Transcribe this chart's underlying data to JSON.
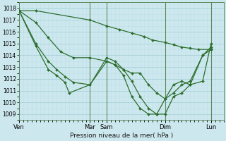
{
  "xlabel": "Pression niveau de la mer( hPa )",
  "ylim": [
    1008.5,
    1018.5
  ],
  "yticks": [
    1009,
    1010,
    1011,
    1012,
    1013,
    1014,
    1015,
    1016,
    1017,
    1018
  ],
  "bg_color": "#cce8ee",
  "grid_major_color": "#aed4dc",
  "grid_minor_color": "#bcdfe6",
  "line_color": "#2d6e2d",
  "day_labels": [
    "Ven",
    "Mar",
    "Sam",
    "Dim",
    "Lun"
  ],
  "day_x": [
    0,
    8.5,
    10.5,
    17.5,
    23.0
  ],
  "xlim": [
    0,
    24.5
  ],
  "line1_x": [
    0.0,
    2.0,
    8.5,
    10.5,
    12.0,
    13.5,
    15.0,
    16.0,
    17.5,
    18.5,
    19.5,
    20.5,
    21.5,
    23.0
  ],
  "line1_y": [
    1017.8,
    1017.8,
    1017.0,
    1016.5,
    1016.2,
    1015.9,
    1015.6,
    1015.3,
    1015.1,
    1014.9,
    1014.7,
    1014.6,
    1014.5,
    1014.5
  ],
  "line2_x": [
    0.0,
    2.0,
    3.5,
    5.0,
    6.5,
    8.5,
    10.5,
    11.5,
    12.5,
    13.5,
    14.5,
    15.5,
    16.5,
    17.5,
    18.5,
    19.5,
    20.5,
    22.0,
    23.0
  ],
  "line2_y": [
    1017.8,
    1016.8,
    1015.5,
    1014.3,
    1013.8,
    1013.8,
    1013.5,
    1013.2,
    1012.8,
    1012.5,
    1012.5,
    1011.5,
    1010.8,
    1010.3,
    1010.8,
    1011.5,
    1011.8,
    1014.0,
    1014.5
  ],
  "line3_x": [
    0.0,
    2.0,
    3.5,
    4.5,
    5.5,
    6.5,
    8.5,
    10.5,
    11.5,
    12.5,
    13.5,
    14.5,
    15.5,
    16.5,
    17.5,
    18.5,
    19.5,
    20.5,
    22.0,
    23.0
  ],
  "line3_y": [
    1017.8,
    1015.0,
    1013.5,
    1012.8,
    1012.2,
    1011.7,
    1011.5,
    1013.8,
    1013.5,
    1012.8,
    1011.8,
    1010.5,
    1009.5,
    1009.0,
    1009.0,
    1010.5,
    1010.8,
    1011.5,
    1011.8,
    1015.0
  ],
  "line4_x": [
    0.0,
    2.0,
    3.5,
    4.5,
    5.5,
    6.0,
    8.5,
    10.5,
    11.5,
    12.5,
    13.5,
    14.5,
    15.5,
    16.5,
    17.5,
    18.5,
    19.5,
    20.5,
    22.0,
    23.0
  ],
  "line4_y": [
    1017.8,
    1014.8,
    1012.8,
    1012.3,
    1011.7,
    1010.8,
    1011.5,
    1013.5,
    1013.2,
    1012.3,
    1010.5,
    1009.5,
    1009.0,
    1009.0,
    1010.3,
    1011.5,
    1011.8,
    1011.5,
    1014.0,
    1014.7
  ]
}
